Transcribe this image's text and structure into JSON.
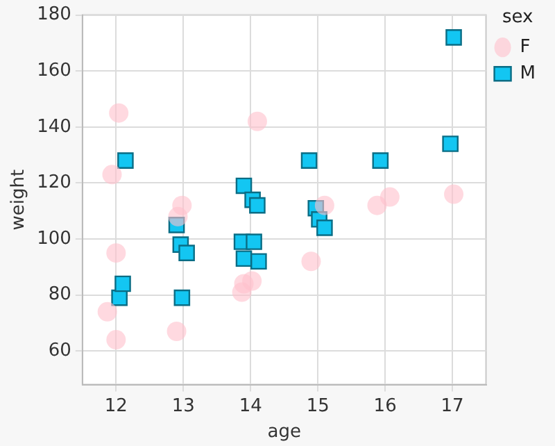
{
  "chart_data": {
    "type": "scatter",
    "xlabel": "age",
    "ylabel": "weight",
    "legend_title": "sex",
    "legend": "top right",
    "grid": true,
    "xlim": [
      11.5,
      17.5
    ],
    "xticks": [
      12,
      13,
      14,
      15,
      16,
      17
    ],
    "ylim": [
      48,
      180
    ],
    "yticks": [
      60,
      80,
      100,
      120,
      140,
      160,
      180
    ],
    "series": [
      {
        "name": "F",
        "color": "#ffc0cb",
        "marker": "circle",
        "x": [
          12.04,
          11.94,
          12.0,
          11.87,
          12.0,
          12.9,
          12.92,
          12.98,
          14.1,
          13.87,
          13.9,
          14.02,
          14.9,
          15.1,
          15.88,
          16.07,
          17.02
        ],
        "values": [
          145,
          123,
          95,
          74,
          64,
          67,
          108,
          112,
          142,
          81,
          84,
          85,
          92,
          112,
          112,
          115,
          116
        ]
      },
      {
        "name": "M",
        "color": "#13c6f2",
        "marker": "square",
        "x": [
          12.14,
          12.05,
          12.1,
          12.9,
          12.96,
          13.05,
          12.98,
          13.9,
          14.03,
          14.1,
          13.87,
          14.05,
          13.9,
          14.12,
          14.87,
          15.93,
          16.97,
          17.02,
          14.97,
          15.02,
          15.1
        ],
        "values": [
          128,
          79,
          84,
          105,
          98,
          95,
          79,
          119,
          114,
          112,
          99,
          99,
          93,
          92,
          128,
          128,
          134,
          172,
          111,
          107,
          104
        ]
      }
    ]
  }
}
